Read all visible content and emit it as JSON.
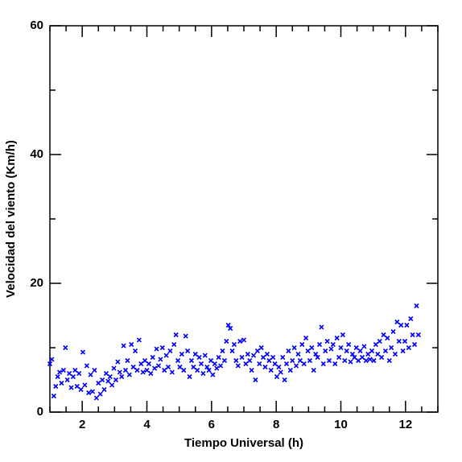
{
  "chart_data": {
    "type": "scatter",
    "x_label": "Tiempo Universal (h)",
    "y_label": "Velocidad del viento (Km/h)",
    "xlim": [
      1,
      13
    ],
    "ylim": [
      0,
      60
    ],
    "xticks": [
      2,
      4,
      6,
      8,
      10,
      12
    ],
    "yticks": [
      0,
      20,
      40,
      60
    ],
    "xminorticks": [
      1,
      1.5,
      2.5,
      3,
      3.5,
      4.5,
      5,
      5.5,
      6.5,
      7,
      7.5,
      8.5,
      9,
      9.5,
      10.5,
      11,
      11.5,
      12.5,
      13
    ],
    "yminorticks": [
      10,
      30,
      50
    ],
    "marker": "x",
    "x": [
      1.0,
      1.06,
      1.12,
      1.18,
      1.24,
      1.3,
      1.36,
      1.42,
      1.48,
      1.54,
      1.6,
      1.66,
      1.72,
      1.78,
      1.84,
      1.9,
      1.96,
      2.02,
      2.08,
      2.14,
      2.2,
      2.26,
      2.32,
      2.38,
      2.44,
      2.5,
      2.56,
      2.62,
      2.68,
      2.74,
      2.8,
      2.86,
      2.92,
      2.98,
      3.04,
      3.1,
      3.16,
      3.22,
      3.28,
      3.34,
      3.4,
      3.46,
      3.52,
      3.58,
      3.64,
      3.7,
      3.76,
      3.82,
      3.88,
      3.94,
      4.0,
      4.06,
      4.12,
      4.18,
      4.24,
      4.3,
      4.36,
      4.42,
      4.48,
      4.54,
      4.6,
      4.66,
      4.72,
      4.78,
      4.84,
      4.9,
      4.96,
      5.02,
      5.08,
      5.14,
      5.2,
      5.26,
      5.32,
      5.38,
      5.44,
      5.5,
      5.56,
      5.62,
      5.68,
      5.74,
      5.8,
      5.86,
      5.92,
      5.98,
      6.04,
      6.1,
      6.16,
      6.22,
      6.28,
      6.34,
      6.4,
      6.46,
      6.52,
      6.58,
      6.64,
      6.7,
      6.76,
      6.82,
      6.88,
      6.94,
      7.0,
      7.06,
      7.12,
      7.18,
      7.24,
      7.3,
      7.36,
      7.42,
      7.48,
      7.54,
      7.6,
      7.66,
      7.72,
      7.78,
      7.84,
      7.9,
      7.96,
      8.02,
      8.08,
      8.14,
      8.2,
      8.26,
      8.32,
      8.38,
      8.44,
      8.5,
      8.56,
      8.62,
      8.68,
      8.74,
      8.8,
      8.86,
      8.92,
      8.98,
      9.04,
      9.1,
      9.16,
      9.22,
      9.28,
      9.34,
      9.4,
      9.46,
      9.52,
      9.58,
      9.64,
      9.7,
      9.76,
      9.82,
      9.88,
      9.94,
      10.0,
      10.06,
      10.12,
      10.18,
      10.24,
      10.3,
      10.36,
      10.42,
      10.48,
      10.54,
      10.6,
      10.66,
      10.72,
      10.78,
      10.84,
      10.9,
      10.96,
      11.02,
      11.08,
      11.14,
      11.2,
      11.26,
      11.32,
      11.38,
      11.44,
      11.5,
      11.56,
      11.62,
      11.68,
      11.74,
      11.8,
      11.86,
      11.92,
      11.98,
      12.04,
      12.1,
      12.16,
      12.22,
      12.28,
      12.34,
      12.4
    ],
    "series": [
      {
        "color": "#0000ff",
        "values": [
          7.5,
          8.2,
          2.5,
          4.0,
          5.5,
          6.2,
          4.5,
          6.5,
          10.0,
          5.0,
          6.0,
          3.8,
          5.5,
          6.5,
          4.0,
          6.0,
          3.5,
          9.3,
          4.2,
          7.2,
          3.0,
          5.8,
          3.2,
          6.5,
          2.2,
          4.5,
          2.8,
          5.0,
          3.5,
          6.0,
          4.8,
          5.5,
          4.2,
          6.8,
          5.0,
          7.8,
          6.2,
          5.5,
          10.3,
          6.5,
          8.0,
          5.8,
          10.5,
          7.0,
          9.5,
          6.5,
          11.2,
          7.5,
          6.2,
          8.0,
          6.5,
          7.5,
          6.0,
          8.5,
          6.8,
          9.8,
          7.2,
          8.2,
          10.0,
          6.5,
          8.8,
          7.0,
          9.5,
          6.2,
          10.5,
          12.0,
          8.0,
          7.0,
          9.0,
          6.5,
          11.8,
          9.5,
          5.5,
          8.0,
          7.0,
          9.0,
          6.5,
          8.5,
          7.5,
          6.0,
          8.8,
          7.0,
          6.5,
          8.0,
          5.8,
          7.5,
          6.8,
          8.5,
          7.2,
          9.5,
          8.0,
          11.0,
          13.5,
          13.0,
          9.5,
          10.5,
          8.0,
          7.2,
          11.0,
          8.5,
          11.2,
          7.5,
          9.0,
          8.0,
          6.5,
          8.8,
          5.0,
          9.5,
          7.5,
          10.0,
          8.5,
          7.0,
          9.0,
          8.0,
          6.5,
          8.5,
          7.5,
          5.5,
          7.0,
          6.2,
          8.5,
          5.0,
          7.5,
          9.5,
          6.5,
          8.0,
          10.0,
          7.2,
          9.0,
          8.0,
          10.5,
          7.5,
          11.5,
          9.5,
          8.0,
          10.0,
          6.5,
          9.0,
          8.5,
          10.5,
          13.2,
          7.5,
          9.5,
          11.0,
          8.0,
          9.8,
          10.5,
          7.5,
          11.5,
          8.5,
          10.0,
          12.0,
          8.0,
          9.5,
          10.5,
          7.8,
          9.0,
          8.5,
          10.0,
          8.0,
          9.5,
          8.5,
          10.2,
          8.0,
          9.0,
          8.2,
          9.5,
          8.0,
          10.5,
          9.0,
          11.0,
          8.5,
          12.0,
          9.5,
          11.5,
          8.0,
          10.0,
          12.5,
          9.0,
          14.0,
          11.0,
          13.5,
          9.5,
          11.0,
          13.5,
          10.0,
          14.5,
          12.0,
          10.5,
          16.5,
          12.0
        ]
      }
    ]
  }
}
